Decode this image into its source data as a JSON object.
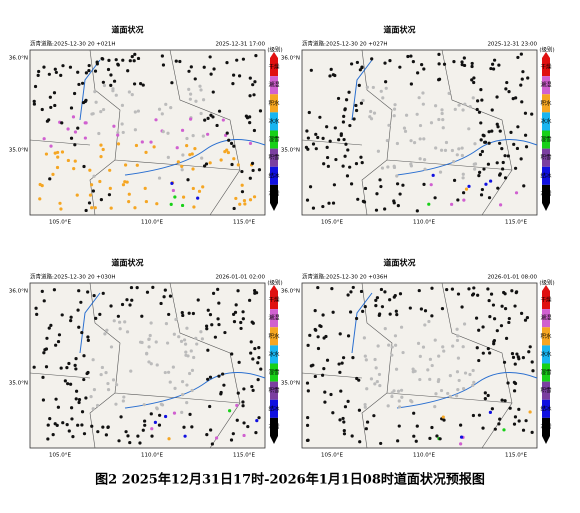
{
  "figure": {
    "panels": [
      {
        "title": "道面状况",
        "run_label": "沥青道路:2025-12-30 20 +021H",
        "valid_time": "2025-12-31 17:00"
      },
      {
        "title": "道面状况",
        "run_label": "沥青道路:2025-12-30 20 +027H",
        "valid_time": "2025-12-31 23:00"
      },
      {
        "title": "道面状况",
        "run_label": "沥青道路:2025-12-30 20 +030H",
        "valid_time": "2026-01-01 02:00"
      },
      {
        "title": "道面状况",
        "run_label": "沥青道路:2025-12-30 20 +036H",
        "valid_time": "2026-01-01 08:00"
      }
    ],
    "lat_labels": [
      "36.0°N",
      "35.0°N"
    ],
    "lon_labels": [
      "105.0°E",
      "110.0°E",
      "115.0°E"
    ],
    "legend": {
      "title": "(级别)",
      "labels": [
        "冰雪",
        "结冰",
        "积雪",
        "湿雪",
        "冰水",
        "积水",
        "潮湿",
        "干燥"
      ]
    },
    "caption": "图2 2025年12月31日17时-2026年1月1日08时道面状况预报图"
  }
}
